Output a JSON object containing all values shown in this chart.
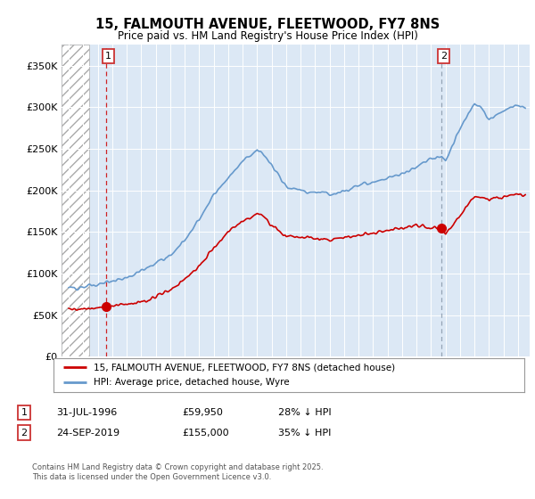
{
  "title": "15, FALMOUTH AVENUE, FLEETWOOD, FY7 8NS",
  "subtitle": "Price paid vs. HM Land Registry's House Price Index (HPI)",
  "background_color": "#ffffff",
  "plot_bg_color": "#dce8f5",
  "hatch_region_end_year": 1995.42,
  "ylim": [
    0,
    375000
  ],
  "xlim": [
    1993.5,
    2025.8
  ],
  "yticks": [
    0,
    50000,
    100000,
    150000,
    200000,
    250000,
    300000,
    350000
  ],
  "ytick_labels": [
    "£0",
    "£50K",
    "£100K",
    "£150K",
    "£200K",
    "£250K",
    "£300K",
    "£350K"
  ],
  "xticks": [
    1994,
    1995,
    1996,
    1997,
    1998,
    1999,
    2000,
    2001,
    2002,
    2003,
    2004,
    2005,
    2006,
    2007,
    2008,
    2009,
    2010,
    2011,
    2012,
    2013,
    2014,
    2015,
    2016,
    2017,
    2018,
    2019,
    2020,
    2021,
    2022,
    2023,
    2024,
    2025
  ],
  "sale1_year": 1996.58,
  "sale1_price": 59950,
  "sale1_label": "1",
  "sale2_year": 2019.73,
  "sale2_price": 155000,
  "sale2_label": "2",
  "legend_line1": "15, FALMOUTH AVENUE, FLEETWOOD, FY7 8NS (detached house)",
  "legend_line2": "HPI: Average price, detached house, Wyre",
  "footer": "Contains HM Land Registry data © Crown copyright and database right 2025.\nThis data is licensed under the Open Government Licence v3.0.",
  "red_line_color": "#cc0000",
  "blue_line_color": "#6699cc",
  "sale1_vline_color": "#cc0000",
  "sale2_vline_color": "#8899aa",
  "grid_color": "#ffffff",
  "hatch_color": "#bbbbbb",
  "label_box_color": "#cc3333",
  "sale1_date": "31-JUL-1996",
  "sale1_price_str": "£59,950",
  "sale1_hpi_str": "28% ↓ HPI",
  "sale2_date": "24-SEP-2019",
  "sale2_price_str": "£155,000",
  "sale2_hpi_str": "35% ↓ HPI"
}
